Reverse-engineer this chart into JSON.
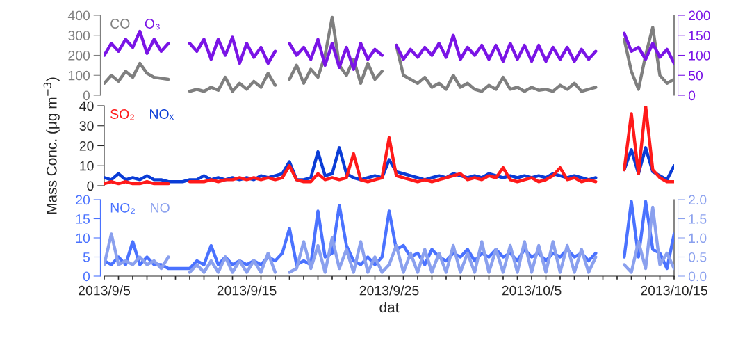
{
  "chart_data": [
    {
      "type": "line",
      "tick_labels": "y",
      "legend": false,
      "grid": false,
      "line_style": "solid",
      "marker": "none",
      "x": [
        "2013-09-05T00:00",
        "2013-09-05T12:00",
        "2013-09-06T00:00",
        "2013-09-06T12:00",
        "2013-09-07T00:00",
        "2013-09-07T12:00",
        "2013-09-08T00:00",
        "2013-09-08T12:00",
        "2013-09-09T00:00",
        "2013-09-09T12:00",
        "2013-09-10T00:00",
        "2013-09-10T12:00",
        "2013-09-11T00:00",
        "2013-09-11T12:00",
        "2013-09-12T00:00",
        "2013-09-12T12:00",
        "2013-09-13T00:00",
        "2013-09-13T12:00",
        "2013-09-14T00:00",
        "2013-09-14T12:00",
        "2013-09-15T00:00",
        "2013-09-15T12:00",
        "2013-09-16T00:00",
        "2013-09-16T12:00",
        "2013-09-17T00:00",
        "2013-09-17T12:00",
        "2013-09-18T00:00",
        "2013-09-18T12:00",
        "2013-09-19T00:00",
        "2013-09-19T12:00",
        "2013-09-20T00:00",
        "2013-09-20T12:00",
        "2013-09-21T00:00",
        "2013-09-21T12:00",
        "2013-09-22T00:00",
        "2013-09-22T12:00",
        "2013-09-23T00:00",
        "2013-09-23T12:00",
        "2013-09-24T00:00",
        "2013-09-24T12:00",
        "2013-09-25T00:00",
        "2013-09-25T12:00",
        "2013-09-26T00:00",
        "2013-09-26T12:00",
        "2013-09-27T00:00",
        "2013-09-27T12:00",
        "2013-09-28T00:00",
        "2013-09-28T12:00",
        "2013-09-29T00:00",
        "2013-09-29T12:00",
        "2013-09-30T00:00",
        "2013-09-30T12:00",
        "2013-10-01T00:00",
        "2013-10-01T12:00",
        "2013-10-02T00:00",
        "2013-10-02T12:00",
        "2013-10-03T00:00",
        "2013-10-03T12:00",
        "2013-10-04T00:00",
        "2013-10-04T12:00",
        "2013-10-05T00:00",
        "2013-10-05T12:00",
        "2013-10-06T00:00",
        "2013-10-06T12:00",
        "2013-10-07T00:00",
        "2013-10-07T12:00",
        "2013-10-08T00:00",
        "2013-10-08T12:00",
        "2013-10-09T00:00",
        "2013-10-09T12:00",
        "2013-10-10T00:00",
        "2013-10-10T12:00",
        "2013-10-11T00:00",
        "2013-10-11T12:00",
        "2013-10-12T00:00",
        "2013-10-12T12:00",
        "2013-10-13T00:00",
        "2013-10-13T12:00",
        "2013-10-14T00:00",
        "2013-10-14T12:00",
        "2013-10-15T00:00"
      ],
      "xlim": [
        "2013-09-05",
        "2013-10-15"
      ],
      "ylim": [
        0,
        400
      ],
      "yticks": [
        0,
        100,
        200,
        300,
        400
      ],
      "y2lim": [
        0,
        200
      ],
      "y2ticks": [
        0,
        50,
        100,
        150,
        200
      ],
      "series": [
        {
          "name": "CO",
          "color": "#7f7f7f",
          "values": [
            60,
            100,
            70,
            120,
            90,
            160,
            110,
            90,
            85,
            80,
            null,
            null,
            20,
            30,
            20,
            40,
            25,
            90,
            20,
            60,
            30,
            70,
            40,
            110,
            50,
            null,
            80,
            150,
            60,
            130,
            90,
            200,
            390,
            150,
            100,
            180,
            60,
            160,
            80,
            120,
            null,
            250,
            100,
            80,
            60,
            90,
            40,
            60,
            30,
            100,
            40,
            60,
            30,
            20,
            50,
            30,
            90,
            30,
            40,
            20,
            40,
            25,
            30,
            20,
            50,
            30,
            60,
            20,
            30,
            40,
            null,
            null,
            null,
            280,
            120,
            30,
            200,
            340,
            100,
            60,
            80
          ]
        },
        {
          "name": "O₃",
          "color": "#7a14e6",
          "axis": "y2",
          "values": [
            100,
            130,
            110,
            140,
            120,
            160,
            105,
            140,
            110,
            130,
            null,
            null,
            130,
            110,
            140,
            90,
            140,
            100,
            145,
            80,
            130,
            95,
            120,
            80,
            110,
            null,
            130,
            100,
            120,
            90,
            140,
            75,
            130,
            70,
            120,
            65,
            130,
            90,
            115,
            100,
            null,
            125,
            90,
            115,
            95,
            120,
            100,
            130,
            95,
            150,
            90,
            120,
            100,
            125,
            90,
            125,
            85,
            130,
            90,
            125,
            85,
            125,
            85,
            120,
            90,
            120,
            85,
            115,
            90,
            110,
            null,
            null,
            null,
            155,
            110,
            120,
            90,
            130,
            95,
            115,
            80
          ]
        }
      ]
    },
    {
      "type": "line",
      "tick_labels": "y",
      "legend": false,
      "grid": false,
      "line_style": "solid",
      "marker": "none",
      "ylabel": "Mass Conc. (μg m$^{−3}$)",
      "x": [
        "2013-09-05T00:00",
        "2013-09-05T12:00",
        "2013-09-06T00:00",
        "2013-09-06T12:00",
        "2013-09-07T00:00",
        "2013-09-07T12:00",
        "2013-09-08T00:00",
        "2013-09-08T12:00",
        "2013-09-09T00:00",
        "2013-09-09T12:00",
        "2013-09-10T00:00",
        "2013-09-10T12:00",
        "2013-09-11T00:00",
        "2013-09-11T12:00",
        "2013-09-12T00:00",
        "2013-09-12T12:00",
        "2013-09-13T00:00",
        "2013-09-13T12:00",
        "2013-09-14T00:00",
        "2013-09-14T12:00",
        "2013-09-15T00:00",
        "2013-09-15T12:00",
        "2013-09-16T00:00",
        "2013-09-16T12:00",
        "2013-09-17T00:00",
        "2013-09-17T12:00",
        "2013-09-18T00:00",
        "2013-09-18T12:00",
        "2013-09-19T00:00",
        "2013-09-19T12:00",
        "2013-09-20T00:00",
        "2013-09-20T12:00",
        "2013-09-21T00:00",
        "2013-09-21T12:00",
        "2013-09-22T00:00",
        "2013-09-22T12:00",
        "2013-09-23T00:00",
        "2013-09-23T12:00",
        "2013-09-24T00:00",
        "2013-09-24T12:00",
        "2013-09-25T00:00",
        "2013-09-25T12:00",
        "2013-09-26T00:00",
        "2013-09-26T12:00",
        "2013-09-27T00:00",
        "2013-09-27T12:00",
        "2013-09-28T00:00",
        "2013-09-28T12:00",
        "2013-09-29T00:00",
        "2013-09-29T12:00",
        "2013-09-30T00:00",
        "2013-09-30T12:00",
        "2013-10-01T00:00",
        "2013-10-01T12:00",
        "2013-10-02T00:00",
        "2013-10-02T12:00",
        "2013-10-03T00:00",
        "2013-10-03T12:00",
        "2013-10-04T00:00",
        "2013-10-04T12:00",
        "2013-10-05T00:00",
        "2013-10-05T12:00",
        "2013-10-06T00:00",
        "2013-10-06T12:00",
        "2013-10-07T00:00",
        "2013-10-07T12:00",
        "2013-10-08T00:00",
        "2013-10-08T12:00",
        "2013-10-09T00:00",
        "2013-10-09T12:00",
        "2013-10-10T00:00",
        "2013-10-10T12:00",
        "2013-10-11T00:00",
        "2013-10-11T12:00",
        "2013-10-12T00:00",
        "2013-10-12T12:00",
        "2013-10-13T00:00",
        "2013-10-13T12:00",
        "2013-10-14T00:00",
        "2013-10-14T12:00",
        "2013-10-15T00:00"
      ],
      "xlim": [
        "2013-09-05",
        "2013-10-15"
      ],
      "ylim": [
        0,
        40
      ],
      "yticks": [
        0,
        10,
        20,
        30,
        40
      ],
      "series": [
        {
          "name": "SO₂",
          "color": "#ff1a1a",
          "values": [
            1,
            2,
            1,
            2,
            1,
            1,
            2,
            1,
            1,
            1,
            null,
            null,
            2,
            2,
            2,
            3,
            2,
            3,
            3,
            4,
            3,
            4,
            3,
            4,
            3,
            4,
            10,
            3,
            2,
            2,
            6,
            3,
            4,
            3,
            4,
            16,
            3,
            2,
            3,
            4,
            24,
            5,
            4,
            3,
            2,
            3,
            2,
            3,
            4,
            5,
            6,
            3,
            4,
            3,
            5,
            4,
            9,
            3,
            2,
            3,
            4,
            2,
            3,
            5,
            9,
            3,
            4,
            2,
            3,
            2,
            null,
            null,
            null,
            8,
            36,
            6,
            40,
            8,
            4,
            2,
            2
          ]
        },
        {
          "name": "NOₓ",
          "color": "#0a3cd6",
          "values": [
            4,
            3,
            6,
            3,
            4,
            3,
            5,
            3,
            3,
            2,
            2,
            2,
            3,
            3,
            5,
            3,
            4,
            3,
            4,
            3,
            4,
            3,
            5,
            4,
            5,
            6,
            12,
            3,
            3,
            4,
            17,
            5,
            6,
            19,
            6,
            4,
            3,
            4,
            5,
            4,
            13,
            7,
            6,
            5,
            4,
            3,
            4,
            5,
            4,
            6,
            5,
            4,
            5,
            4,
            6,
            5,
            4,
            5,
            4,
            5,
            4,
            5,
            4,
            6,
            5,
            4,
            5,
            4,
            3,
            4,
            null,
            null,
            null,
            8,
            18,
            6,
            19,
            7,
            5,
            3,
            10
          ]
        }
      ]
    },
    {
      "type": "line",
      "legend": false,
      "grid": false,
      "line_style": "solid",
      "marker": "none",
      "xlabel": "dat",
      "x": [
        "2013-09-05T00:00",
        "2013-09-05T12:00",
        "2013-09-06T00:00",
        "2013-09-06T12:00",
        "2013-09-07T00:00",
        "2013-09-07T12:00",
        "2013-09-08T00:00",
        "2013-09-08T12:00",
        "2013-09-09T00:00",
        "2013-09-09T12:00",
        "2013-09-10T00:00",
        "2013-09-10T12:00",
        "2013-09-11T00:00",
        "2013-09-11T12:00",
        "2013-09-12T00:00",
        "2013-09-12T12:00",
        "2013-09-13T00:00",
        "2013-09-13T12:00",
        "2013-09-14T00:00",
        "2013-09-14T12:00",
        "2013-09-15T00:00",
        "2013-09-15T12:00",
        "2013-09-16T00:00",
        "2013-09-16T12:00",
        "2013-09-17T00:00",
        "2013-09-17T12:00",
        "2013-09-18T00:00",
        "2013-09-18T12:00",
        "2013-09-19T00:00",
        "2013-09-19T12:00",
        "2013-09-20T00:00",
        "2013-09-20T12:00",
        "2013-09-21T00:00",
        "2013-09-21T12:00",
        "2013-09-22T00:00",
        "2013-09-22T12:00",
        "2013-09-23T00:00",
        "2013-09-23T12:00",
        "2013-09-24T00:00",
        "2013-09-24T12:00",
        "2013-09-25T00:00",
        "2013-09-25T12:00",
        "2013-09-26T00:00",
        "2013-09-26T12:00",
        "2013-09-27T00:00",
        "2013-09-27T12:00",
        "2013-09-28T00:00",
        "2013-09-28T12:00",
        "2013-09-29T00:00",
        "2013-09-29T12:00",
        "2013-09-30T00:00",
        "2013-09-30T12:00",
        "2013-10-01T00:00",
        "2013-10-01T12:00",
        "2013-10-02T00:00",
        "2013-10-02T12:00",
        "2013-10-03T00:00",
        "2013-10-03T12:00",
        "2013-10-04T00:00",
        "2013-10-04T12:00",
        "2013-10-05T00:00",
        "2013-10-05T12:00",
        "2013-10-06T00:00",
        "2013-10-06T12:00",
        "2013-10-07T00:00",
        "2013-10-07T12:00",
        "2013-10-08T00:00",
        "2013-10-08T12:00",
        "2013-10-09T00:00",
        "2013-10-09T12:00",
        "2013-10-10T00:00",
        "2013-10-10T12:00",
        "2013-10-11T00:00",
        "2013-10-11T12:00",
        "2013-10-12T00:00",
        "2013-10-12T12:00",
        "2013-10-13T00:00",
        "2013-10-13T12:00",
        "2013-10-14T00:00",
        "2013-10-14T12:00",
        "2013-10-15T00:00"
      ],
      "xlim": [
        "2013-09-05",
        "2013-10-15"
      ],
      "xticks": [
        {
          "value": "2013-09-05",
          "label": "2013/9/5"
        },
        {
          "value": "2013-09-06",
          "label": null
        },
        {
          "value": "2013-09-07",
          "label": null
        },
        {
          "value": "2013-09-08",
          "label": null
        },
        {
          "value": "2013-09-09",
          "label": null
        },
        {
          "value": "2013-09-10",
          "label": null
        },
        {
          "value": "2013-09-11",
          "label": null
        },
        {
          "value": "2013-09-12",
          "label": null
        },
        {
          "value": "2013-09-13",
          "label": null
        },
        {
          "value": "2013-09-14",
          "label": null
        },
        {
          "value": "2013-09-15",
          "label": "2013/9/15"
        },
        {
          "value": "2013-09-16",
          "label": null
        },
        {
          "value": "2013-09-17",
          "label": null
        },
        {
          "value": "2013-09-18",
          "label": null
        },
        {
          "value": "2013-09-19",
          "label": null
        },
        {
          "value": "2013-09-20",
          "label": null
        },
        {
          "value": "2013-09-21",
          "label": null
        },
        {
          "value": "2013-09-22",
          "label": null
        },
        {
          "value": "2013-09-23",
          "label": null
        },
        {
          "value": "2013-09-24",
          "label": null
        },
        {
          "value": "2013-09-25",
          "label": "2013/9/25"
        },
        {
          "value": "2013-09-26",
          "label": null
        },
        {
          "value": "2013-09-27",
          "label": null
        },
        {
          "value": "2013-09-28",
          "label": null
        },
        {
          "value": "2013-09-29",
          "label": null
        },
        {
          "value": "2013-09-30",
          "label": null
        },
        {
          "value": "2013-10-01",
          "label": null
        },
        {
          "value": "2013-10-02",
          "label": null
        },
        {
          "value": "2013-10-03",
          "label": null
        },
        {
          "value": "2013-10-04",
          "label": null
        },
        {
          "value": "2013-10-05",
          "label": "2013/10/5"
        },
        {
          "value": "2013-10-06",
          "label": null
        },
        {
          "value": "2013-10-07",
          "label": null
        },
        {
          "value": "2013-10-08",
          "label": null
        },
        {
          "value": "2013-10-09",
          "label": null
        },
        {
          "value": "2013-10-10",
          "label": null
        },
        {
          "value": "2013-10-11",
          "label": null
        },
        {
          "value": "2013-10-12",
          "label": null
        },
        {
          "value": "2013-10-13",
          "label": null
        },
        {
          "value": "2013-10-14",
          "label": null
        },
        {
          "value": "2013-10-15",
          "label": "2013/10/15"
        }
      ],
      "ylim": [
        0,
        20
      ],
      "yticks": [
        0,
        5,
        10,
        15,
        20
      ],
      "y2lim": [
        0,
        2
      ],
      "y2ticks": [
        {
          "value": 0,
          "label": "0.0"
        },
        {
          "value": 0.5,
          "label": "0.5"
        },
        {
          "value": 1,
          "label": "1.0"
        },
        {
          "value": 1.5,
          "label": "1.5"
        },
        {
          "value": 2,
          "label": "2.0"
        }
      ],
      "series": [
        {
          "name": "NO₂",
          "color": "#4a72ff",
          "values": [
            4,
            3,
            5,
            3,
            9,
            3,
            5,
            3,
            3,
            2,
            2,
            2,
            2,
            4,
            3,
            8,
            3,
            5,
            3,
            4,
            3,
            4,
            3,
            5,
            4,
            6,
            12.5,
            3,
            4,
            3,
            17,
            5,
            6,
            18.5,
            8,
            4,
            3,
            5,
            3,
            5,
            17,
            7,
            8,
            5,
            6,
            3,
            7,
            5,
            4,
            6,
            5,
            7,
            4,
            6,
            5,
            7,
            5,
            6,
            4,
            7,
            5,
            6,
            4,
            6,
            5,
            7,
            5,
            6,
            4,
            6,
            null,
            null,
            null,
            5,
            19.5,
            5,
            19.5,
            7,
            6,
            2,
            11
          ]
        },
        {
          "name": "NO",
          "color": "#8aa0ee",
          "axis": "y2",
          "values": [
            0.3,
            1.1,
            0.3,
            0.4,
            0.3,
            0.5,
            0.3,
            0.4,
            0.2,
            0.5,
            null,
            null,
            0.1,
            0.3,
            0.1,
            0.4,
            0.1,
            0.5,
            0.1,
            0.4,
            0.1,
            0.4,
            0.1,
            0.6,
            0.1,
            null,
            0.1,
            0.2,
            0.9,
            0.2,
            0.8,
            0.1,
            1.0,
            0.2,
            0.7,
            0.1,
            0.9,
            0.1,
            0.5,
            0.1,
            0.3,
            0.8,
            0.1,
            0.6,
            0.1,
            0.7,
            0.1,
            0.6,
            0.1,
            0.8,
            0.1,
            0.6,
            0.1,
            0.9,
            0.1,
            0.7,
            0.1,
            0.8,
            0.1,
            0.9,
            0.1,
            0.8,
            0.1,
            0.9,
            0.1,
            0.8,
            0.1,
            0.7,
            0.1,
            0.5,
            null,
            null,
            null,
            0.3,
            0.1,
            0.9,
            0.2,
            1.8,
            0.3,
            0.6,
            0.2
          ]
        }
      ]
    }
  ]
}
